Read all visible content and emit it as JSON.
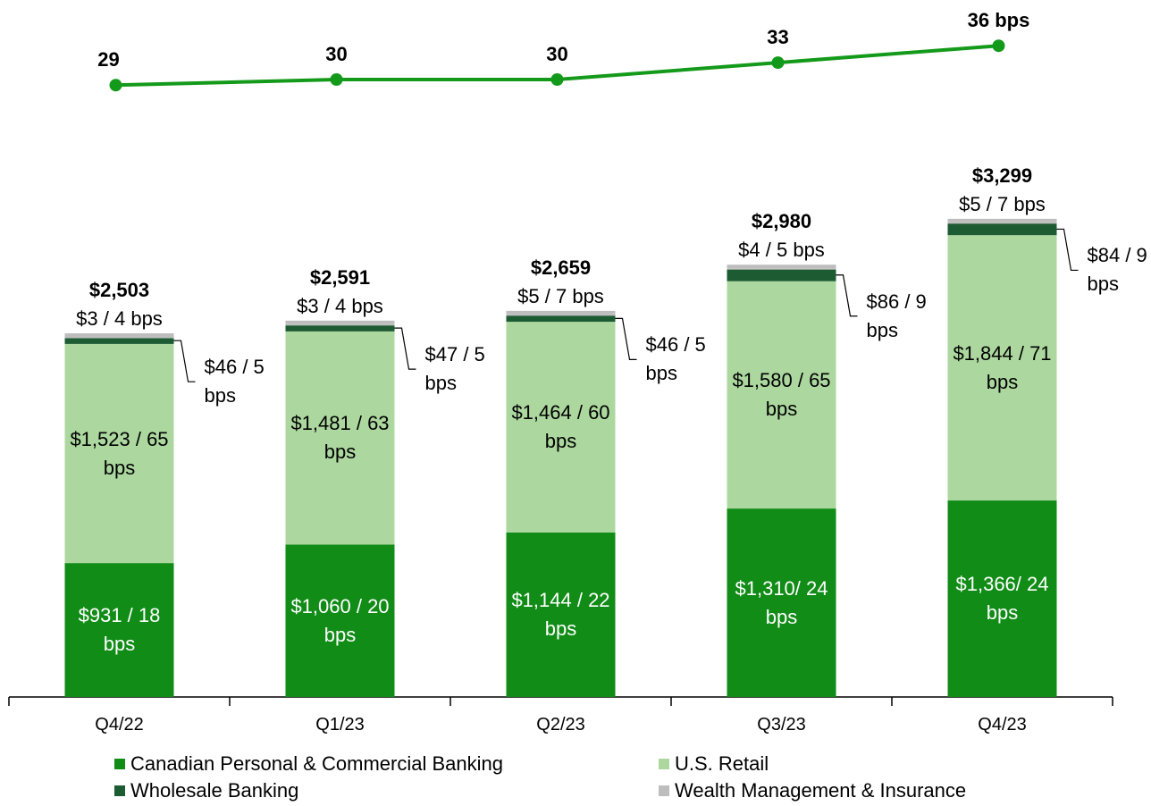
{
  "chart_data": [
    {
      "type": "bar",
      "stacked": true,
      "categories": [
        "Q4/22",
        "Q1/23",
        "Q2/23",
        "Q3/23",
        "Q4/23"
      ],
      "series": [
        {
          "name": "Canadian Personal & Commercial Banking",
          "color": "#118c17",
          "values": [
            931,
            1060,
            1144,
            1310,
            1366
          ],
          "value_labels": [
            "$931 / 18 bps",
            "$1,060 / 20 bps",
            "$1,144 / 22 bps",
            "$1,310/ 24 bps",
            "$1,366/ 24 bps"
          ]
        },
        {
          "name": "U.S. Retail",
          "color": "#acd89f",
          "values": [
            1523,
            1481,
            1464,
            1580,
            1844
          ],
          "value_labels": [
            "$1,523 / 65 bps",
            "$1,481 / 63 bps",
            "$1,464 / 60 bps",
            "$1,580 / 65 bps",
            "$1,844 / 71 bps"
          ]
        },
        {
          "name": "Wholesale Banking",
          "color": "#1d5b33",
          "values": [
            46,
            47,
            46,
            86,
            84
          ],
          "value_labels": [
            "$46 / 5 bps",
            "$47 / 5 bps",
            "$46 / 5 bps",
            "$86 / 9 bps",
            "$84 / 9 bps"
          ]
        },
        {
          "name": "Wealth Management & Insurance",
          "color": "#bdbdbd",
          "values": [
            3,
            3,
            5,
            4,
            5
          ],
          "value_labels": [
            "$3 / 4 bps",
            "$3 / 4 bps",
            "$5 / 7 bps",
            "$4 / 5 bps",
            "$5 / 7 bps"
          ]
        }
      ],
      "totals": {
        "values": [
          2503,
          2591,
          2659,
          2980,
          3299
        ],
        "value_labels": [
          "$2,503",
          "$2,591",
          "$2,659",
          "$2,980",
          "$3,299"
        ]
      }
    },
    {
      "type": "line",
      "color": "#149a1a",
      "values": [
        29,
        30,
        30,
        33,
        36
      ],
      "value_labels": [
        "29",
        "30",
        "30",
        "33",
        "36 bps"
      ]
    }
  ]
}
